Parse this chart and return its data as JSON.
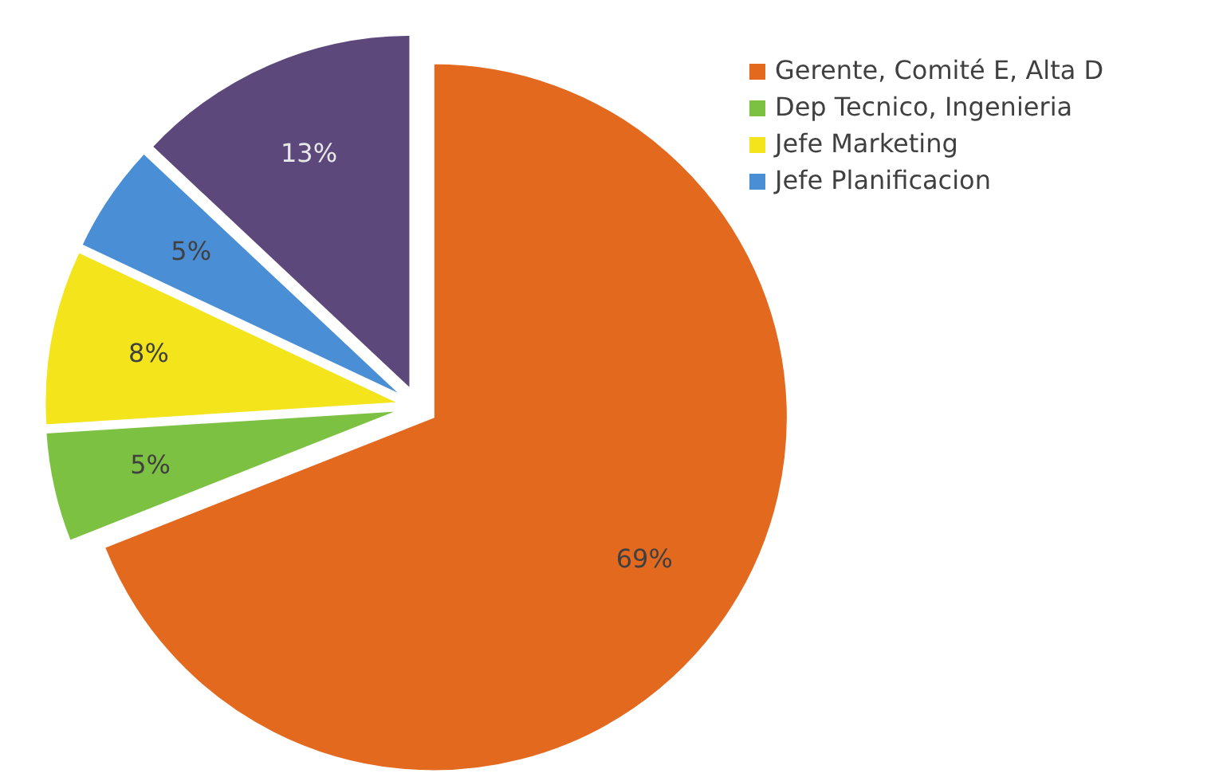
{
  "chart_data": {
    "type": "pie",
    "categories": [
      "Gerente, Comité E, Alta D",
      "Dep Tecnico, Ingenieria",
      "Jefe Marketing",
      "Jefe Planificacion",
      null
    ],
    "values": [
      69,
      5,
      8,
      5,
      13
    ],
    "colors": [
      "#e3691f",
      "#7cc142",
      "#f3e41b",
      "#4a8fd5",
      "#5d487c"
    ],
    "value_labels": [
      "69%",
      "5%",
      "8%",
      "5%",
      "13%"
    ],
    "legend": "top right"
  }
}
